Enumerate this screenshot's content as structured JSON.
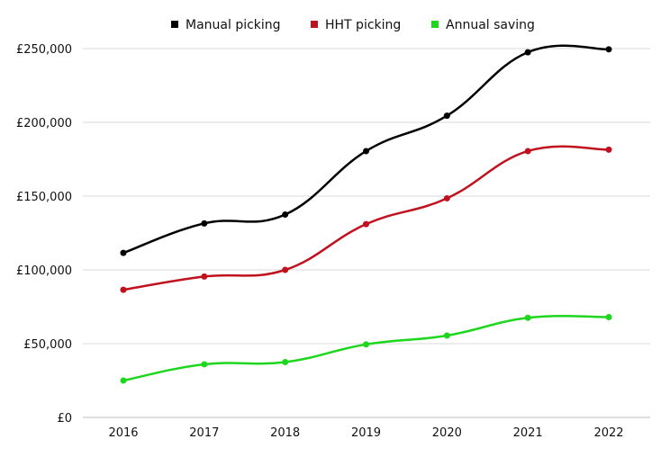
{
  "chart_data": {
    "type": "line",
    "title": "",
    "xlabel": "",
    "ylabel": "",
    "categories": [
      "2016",
      "2017",
      "2018",
      "2019",
      "2020",
      "2021",
      "2022"
    ],
    "yticks": [
      0,
      50000,
      100000,
      150000,
      200000,
      250000
    ],
    "ytick_labels": [
      "£0",
      "£50,000",
      "£100,000",
      "£150,000",
      "£200,000",
      "£250,000"
    ],
    "ylim": [
      0,
      250000
    ],
    "grid": true,
    "legend_position": "top-center",
    "smooth": true,
    "series": [
      {
        "name": "Manual picking",
        "color": "#000000",
        "values": [
          111500,
          131500,
          137500,
          180500,
          204500,
          247500,
          249500
        ]
      },
      {
        "name": "HHT picking",
        "color": "#c0121e",
        "values": [
          86500,
          95500,
          100000,
          131000,
          148500,
          180500,
          181500
        ]
      },
      {
        "name": "Annual saving",
        "color": "#1ed61e",
        "values": [
          25000,
          36000,
          37500,
          49500,
          55500,
          67500,
          68000
        ]
      }
    ]
  }
}
